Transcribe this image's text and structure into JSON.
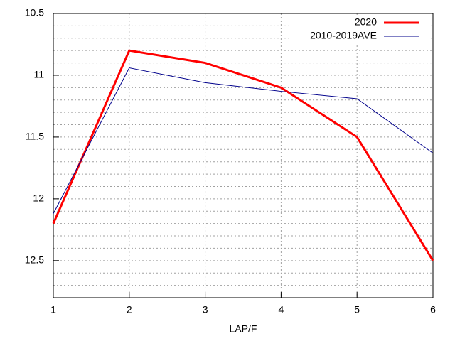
{
  "chart_data": {
    "type": "line",
    "x": [
      1,
      2,
      3,
      4,
      5,
      6
    ],
    "series": [
      {
        "name": "2020",
        "color": "#ff0000",
        "width": 3,
        "values": [
          12.2,
          10.8,
          10.9,
          11.1,
          11.5,
          12.5
        ]
      },
      {
        "name": "2010-2019AVE",
        "color": "#00008b",
        "width": 1,
        "values": [
          12.12,
          10.94,
          11.06,
          11.13,
          11.19,
          11.63
        ]
      }
    ],
    "x_label": "LAP/F",
    "xlim": [
      1,
      6
    ],
    "xticks": [
      1,
      2,
      3,
      4,
      5,
      6
    ],
    "ylim": [
      10.5,
      12.8
    ],
    "y_reversed": true,
    "yticks": [
      10.5,
      11,
      11.5,
      12,
      12.5
    ],
    "minor_yticks": [
      10.6,
      10.7,
      10.8,
      10.9,
      11.1,
      11.2,
      11.3,
      11.4,
      11.6,
      11.7,
      11.8,
      11.9,
      12.1,
      12.2,
      12.3,
      12.4,
      12.6,
      12.7
    ],
    "grid": true,
    "legend": "top-right"
  }
}
